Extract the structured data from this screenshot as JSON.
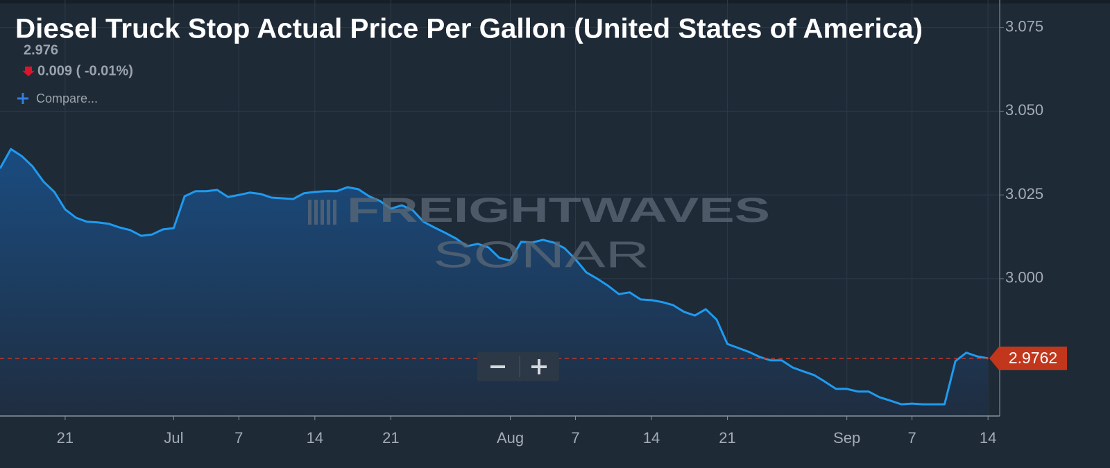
{
  "chart_data": {
    "type": "area",
    "title": "Diesel Truck Stop Actual Price Per Gallon (United States of America)",
    "quote": {
      "value": "2.976",
      "change": "0.009 ( -0.01%)"
    },
    "compare_label": "Compare...",
    "watermark": [
      "FREIGHTWAVES",
      "SONAR"
    ],
    "categories": [
      null,
      null,
      null,
      null,
      null,
      null,
      "21",
      null,
      null,
      null,
      null,
      null,
      null,
      null,
      null,
      null,
      "Jul",
      null,
      null,
      null,
      null,
      null,
      "7",
      null,
      null,
      null,
      null,
      null,
      null,
      "14",
      null,
      null,
      null,
      null,
      null,
      null,
      "21",
      null,
      null,
      null,
      null,
      null,
      null,
      null,
      null,
      null,
      null,
      "Aug",
      null,
      null,
      null,
      null,
      null,
      "7",
      null,
      null,
      null,
      null,
      null,
      null,
      "14",
      null,
      null,
      null,
      null,
      null,
      null,
      "21",
      null,
      null,
      null,
      null,
      null,
      null,
      null,
      null,
      null,
      null,
      "Sep",
      null,
      null,
      null,
      null,
      null,
      "7",
      null,
      null,
      null,
      null,
      null,
      null,
      "14"
    ],
    "values": [
      3.0329,
      3.0387,
      3.0366,
      3.0335,
      3.029,
      3.0259,
      3.0207,
      3.0182,
      3.017,
      3.0168,
      3.0164,
      3.0153,
      3.0145,
      3.0128,
      3.0132,
      3.0147,
      3.0151,
      3.0246,
      3.0261,
      3.0261,
      3.0265,
      3.0244,
      3.025,
      3.0257,
      3.0253,
      3.0242,
      3.024,
      3.0238,
      3.0255,
      3.0259,
      3.0261,
      3.0261,
      3.0273,
      3.0267,
      3.0246,
      3.0232,
      3.0209,
      3.0219,
      3.0205,
      3.017,
      3.0153,
      3.0137,
      3.012,
      3.0097,
      3.0104,
      3.0093,
      3.0062,
      3.0054,
      3.011,
      3.0108,
      3.0116,
      3.0108,
      3.0091,
      3.0058,
      3.0019,
      3.0,
      2.9979,
      2.9954,
      2.9959,
      2.9938,
      2.9936,
      2.993,
      2.9921,
      2.9901,
      2.989,
      2.9909,
      2.9878,
      2.9805,
      2.9793,
      2.9781,
      2.9766,
      2.9756,
      2.9756,
      2.9735,
      2.9723,
      2.9712,
      2.9692,
      2.9671,
      2.9671,
      2.9663,
      2.9663,
      2.9646,
      2.9636,
      2.9625,
      2.9627,
      2.9625,
      2.9625,
      2.9625,
      2.9754,
      2.9779,
      2.9768,
      2.9762
    ],
    "color": "#1e9bf0",
    "ylim": [
      2.959,
      3.0832
    ],
    "yticks": [
      {
        "value": 3,
        "label": "3.000"
      },
      {
        "value": 3.025,
        "label": "3.025"
      },
      {
        "value": 3.05,
        "label": "3.050"
      },
      {
        "value": 3.075,
        "label": "3.075"
      }
    ],
    "grid": true
  }
}
